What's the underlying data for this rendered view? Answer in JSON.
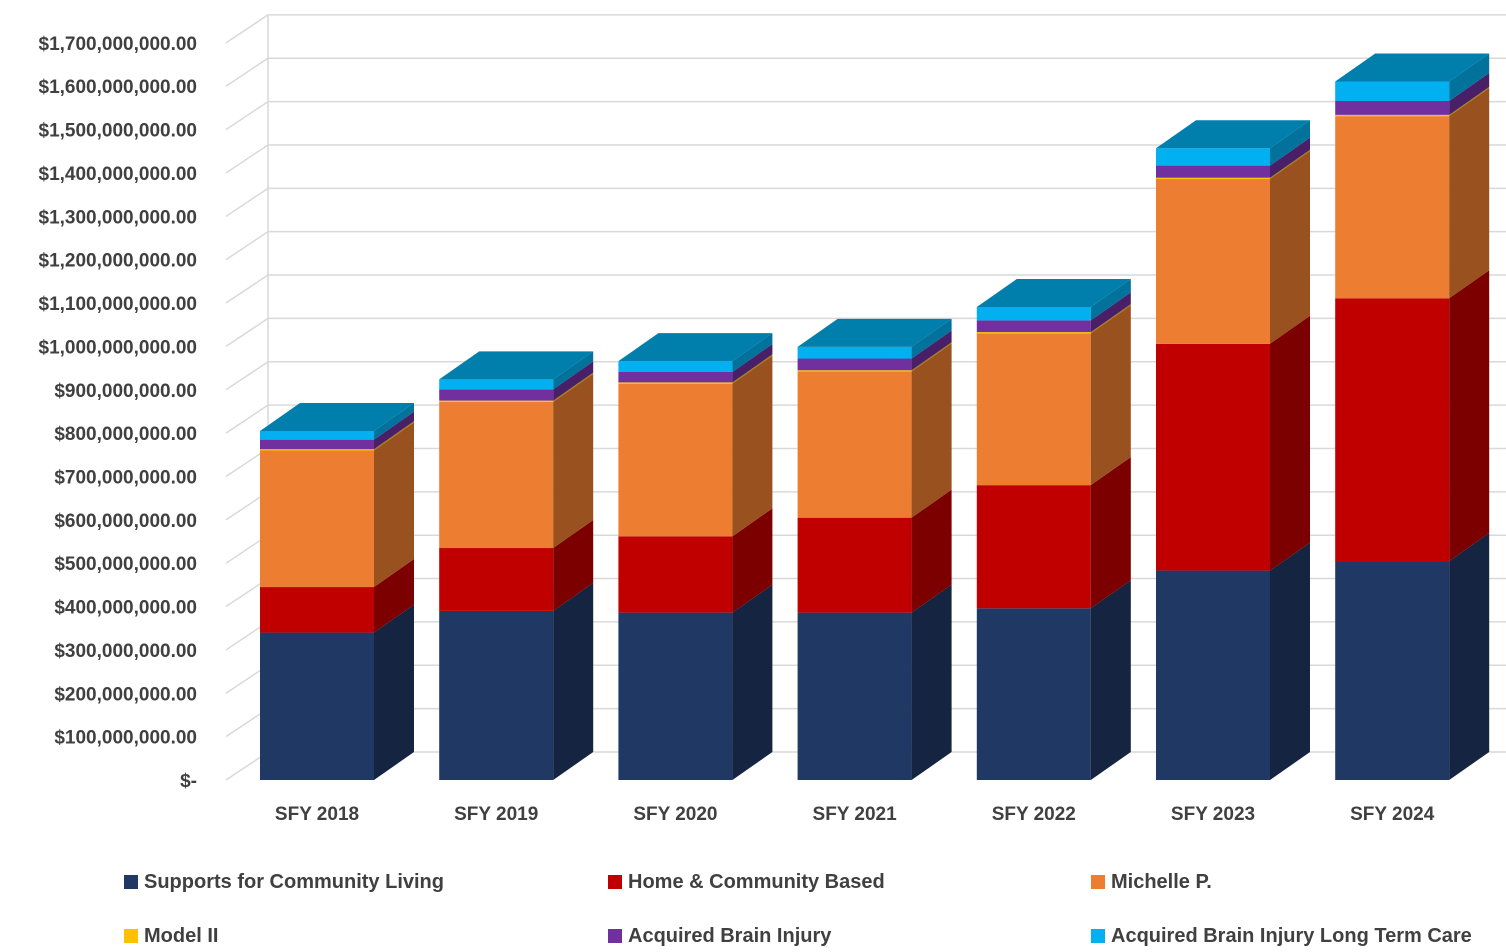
{
  "chart_data": {
    "type": "bar",
    "stacked": true,
    "three_d": true,
    "title": "",
    "xlabel": "",
    "ylabel": "",
    "ylim": [
      0,
      1700000000
    ],
    "y_ticks": [
      0,
      100000000,
      200000000,
      300000000,
      400000000,
      500000000,
      600000000,
      700000000,
      800000000,
      900000000,
      1000000000,
      1100000000,
      1200000000,
      1300000000,
      1400000000,
      1500000000,
      1600000000,
      1700000000
    ],
    "y_tick_labels": [
      "$-",
      "$100,000,000.00",
      "$200,000,000.00",
      "$300,000,000.00",
      "$400,000,000.00",
      "$500,000,000.00",
      "$600,000,000.00",
      "$700,000,000.00",
      "$800,000,000.00",
      "$900,000,000.00",
      "$1,000,000,000.00",
      "$1,100,000,000.00",
      "$1,200,000,000.00",
      "$1,300,000,000.00",
      "$1,400,000,000.00",
      "$1,500,000,000.00",
      "$1,600,000,000.00",
      "$1,700,000,000.00"
    ],
    "grid": true,
    "legend_position": "bottom",
    "categories": [
      "SFY 2018",
      "SFY 2019",
      "SFY 2020",
      "SFY 2021",
      "SFY 2022",
      "SFY 2023",
      "SFY 2024"
    ],
    "series": [
      {
        "name": "Supports for Community Living",
        "color": "#1F3864",
        "values": [
          340000000,
          390000000,
          386000000,
          386000000,
          396000000,
          483000000,
          505000000
        ]
      },
      {
        "name": "Home & Community Based",
        "color": "#C00000",
        "values": [
          105000000,
          145000000,
          176000000,
          219000000,
          284000000,
          523000000,
          606000000
        ]
      },
      {
        "name": "Michelle P.",
        "color": "#ED7D31",
        "values": [
          315000000,
          337000000,
          352000000,
          337000000,
          350000000,
          380000000,
          420000000
        ]
      },
      {
        "name": "Model II",
        "color": "#FFC000",
        "values": [
          3000000,
          3000000,
          3000000,
          3000000,
          3000000,
          3000000,
          3000000
        ]
      },
      {
        "name": "Acquired Brain Injury",
        "color": "#7030A0",
        "values": [
          22000000,
          26000000,
          24000000,
          27000000,
          27000000,
          28000000,
          32000000
        ]
      },
      {
        "name": "Acquired Brain Injury Long Term Care",
        "color": "#00B0F0",
        "values": [
          20000000,
          23000000,
          25000000,
          27000000,
          31000000,
          40000000,
          45000000
        ]
      }
    ]
  }
}
